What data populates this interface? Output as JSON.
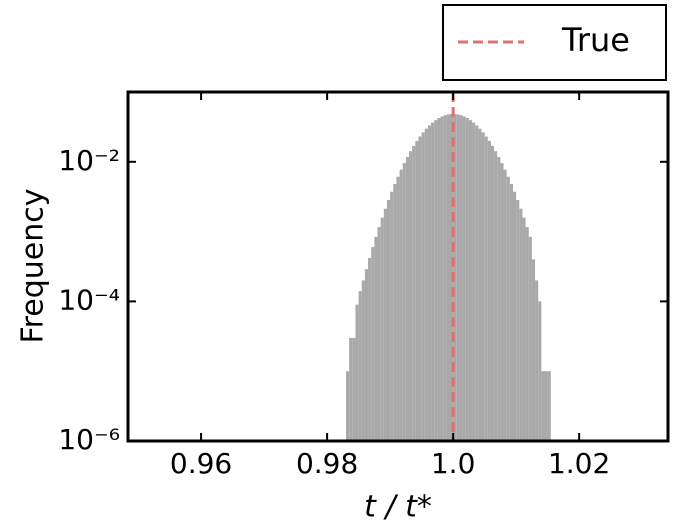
{
  "chart_data": {
    "type": "histogram",
    "xlabel": "t / t*",
    "ylabel": "Frequency",
    "color": "#a9a9a9",
    "bins": [
      0.983,
      0.9835,
      0.984,
      0.9845,
      0.985,
      0.9855,
      0.986,
      0.9865,
      0.987,
      0.9875,
      0.988,
      0.9885,
      0.989,
      0.9895,
      0.99,
      0.9905,
      0.991,
      0.9915,
      0.992,
      0.9925,
      0.993,
      0.9935,
      0.994,
      0.9945,
      0.995,
      0.9955,
      0.996,
      0.9965,
      0.997,
      0.9975,
      0.998,
      0.9985,
      0.999,
      0.9995,
      1.0,
      1.0005,
      1.001,
      1.0015,
      1.002,
      1.0025,
      1.003,
      1.0035,
      1.004,
      1.0045,
      1.005,
      1.0055,
      1.006,
      1.0065,
      1.007,
      1.0075,
      1.008,
      1.0085,
      1.009,
      1.0095,
      1.01,
      1.0105,
      1.011,
      1.0115,
      1.012,
      1.0125,
      1.013,
      1.0135,
      1.014,
      1.0145,
      1.015,
      1.0155
    ],
    "values": [
      1e-05,
      3e-05,
      3e-05,
      9e-05,
      0.00014,
      0.0002,
      0.00029,
      0.00042,
      0.0006,
      0.00084,
      0.00116,
      0.00158,
      0.00213,
      0.00284,
      0.00372,
      0.00481,
      0.00612,
      0.00771,
      0.00957,
      0.0117,
      0.0142,
      0.0169,
      0.0199,
      0.023,
      0.0264,
      0.0298,
      0.0332,
      0.0365,
      0.0395,
      0.0424,
      0.0447,
      0.0466,
      0.0478,
      0.0485,
      0.0485,
      0.0478,
      0.0466,
      0.0447,
      0.0424,
      0.0395,
      0.0365,
      0.0332,
      0.0298,
      0.0264,
      0.023,
      0.0199,
      0.0169,
      0.0142,
      0.0117,
      0.00957,
      0.00771,
      0.00612,
      0.00481,
      0.00372,
      0.00284,
      0.00213,
      0.00158,
      0.00116,
      0.00084,
      0.0004,
      0.0002,
      0.0001,
      1e-05,
      1e-05,
      1e-05
    ],
    "xlim": [
      0.9484,
      1.0341
    ],
    "ylim": [
      1e-06,
      0.1
    ],
    "log_y": true,
    "xticks": [
      0.96,
      0.98,
      {
        "value": 1.0,
        "label": "1.0"
      },
      1.02
    ],
    "yticks": [
      {
        "value": 1e-06,
        "label": "10⁻⁶"
      },
      {
        "value": 0.0001,
        "label": "10⁻⁴"
      },
      {
        "value": 0.01,
        "label": "10⁻²"
      }
    ],
    "vline": {
      "name": "True",
      "x": 1.0,
      "color": "#e07070"
    }
  }
}
